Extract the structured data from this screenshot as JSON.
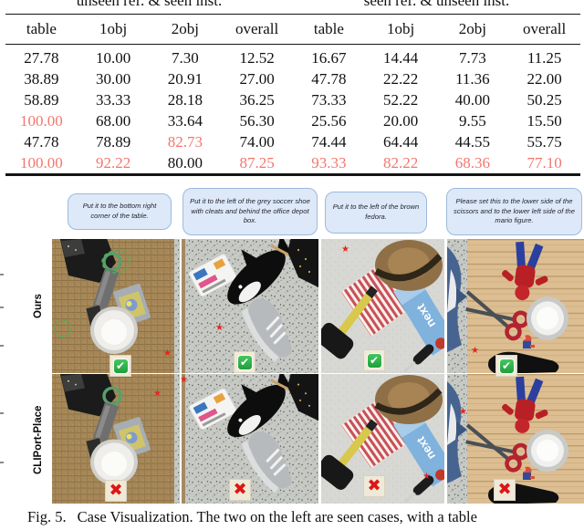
{
  "table": {
    "group_headers": [
      "unseen ref. & seen inst.",
      "seen ref. & unseen inst."
    ],
    "columns": [
      "table",
      "1obj",
      "2obj",
      "overall",
      "table",
      "1obj",
      "2obj",
      "overall"
    ],
    "rows": [
      {
        "values": [
          "27.78",
          "10.00",
          "7.30",
          "12.52",
          "16.67",
          "14.44",
          "7.73",
          "11.25"
        ],
        "red_mask": [
          false,
          false,
          false,
          false,
          false,
          false,
          false,
          false
        ]
      },
      {
        "values": [
          "38.89",
          "30.00",
          "20.91",
          "27.00",
          "47.78",
          "22.22",
          "11.36",
          "22.00"
        ],
        "red_mask": [
          false,
          false,
          false,
          false,
          false,
          false,
          false,
          false
        ]
      },
      {
        "values": [
          "58.89",
          "33.33",
          "28.18",
          "36.25",
          "73.33",
          "52.22",
          "40.00",
          "50.25"
        ],
        "red_mask": [
          false,
          false,
          false,
          false,
          false,
          false,
          false,
          false
        ]
      },
      {
        "values": [
          "100.00",
          "68.00",
          "33.64",
          "56.30",
          "25.56",
          "20.00",
          "9.55",
          "15.50"
        ],
        "red_mask": [
          true,
          false,
          false,
          false,
          false,
          false,
          false,
          false
        ]
      },
      {
        "values": [
          "47.78",
          "78.89",
          "82.73",
          "74.00",
          "74.44",
          "64.44",
          "44.55",
          "55.75"
        ],
        "red_mask": [
          false,
          false,
          true,
          false,
          false,
          false,
          false,
          false
        ]
      },
      {
        "values": [
          "100.00",
          "92.22",
          "80.00",
          "87.25",
          "93.33",
          "82.22",
          "68.36",
          "77.10"
        ],
        "red_mask": [
          true,
          true,
          false,
          true,
          true,
          true,
          true,
          true
        ]
      }
    ]
  },
  "figure": {
    "instructions": [
      "Put it to the bottom right corner of the table.",
      "Put it to the left of the grey soccer shoe with cleats and behind the office depot box.",
      "Put it to the left of the brown fedora.",
      "Please set this to the lower side of the scissors and to the lower left side of the mario figure."
    ],
    "row_labels": [
      "Ours",
      "CLIPort-Place"
    ],
    "success_glyph": "✔",
    "failure_glyph": "✖",
    "star_glyph": "★",
    "next_box_label": "next",
    "panels": [
      {
        "name": "burlap-table",
        "objects": [
          "black-boot",
          "caulk-gun",
          "game-cartridge",
          "white-bowl"
        ]
      },
      {
        "name": "granite-table",
        "objects": [
          "office-depot-box",
          "orca-plush",
          "black-boot",
          "grey-soccer-shoe"
        ]
      },
      {
        "name": "concrete-table",
        "objects": [
          "brown-fedora",
          "striped-towel",
          "next-box",
          "rubber-mallet",
          "screwdriver"
        ]
      },
      {
        "name": "wood-table",
        "objects": [
          "shark-plush",
          "spiderman-figure",
          "red-scissors",
          "white-pan",
          "mario-figure",
          "black-sole"
        ]
      }
    ]
  },
  "caption": {
    "label": "Fig. 5.",
    "text": "Case Visualization. The two on the left are seen cases, with a table"
  },
  "colors": {
    "red_highlight": "#f4766d",
    "bubble_bg": "#dde9f8",
    "success_green": "#1f9e3d",
    "failure_red": "#e01414",
    "star_red": "#e3261c"
  }
}
